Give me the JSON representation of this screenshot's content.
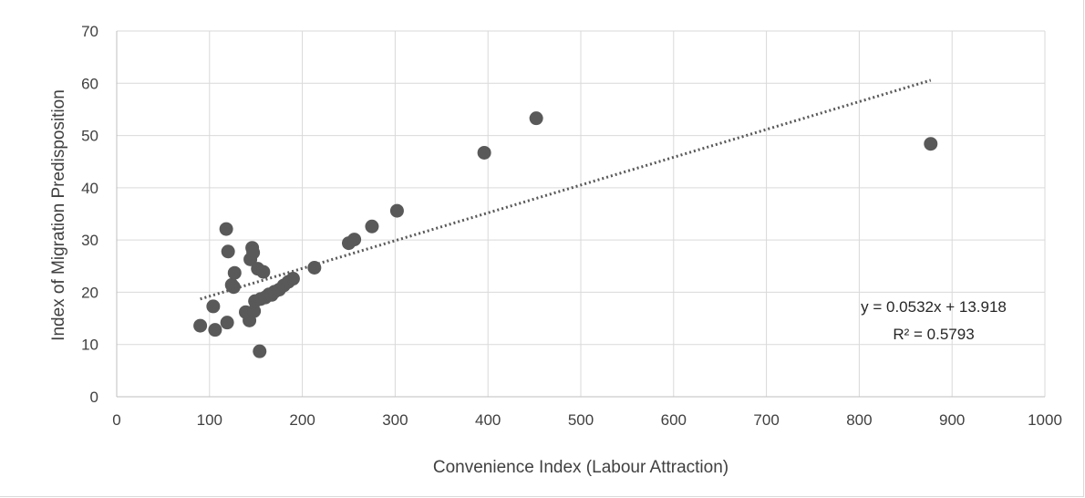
{
  "chart_data": {
    "type": "scatter",
    "title": "",
    "xlabel": "Convenience Index (Labour Attraction)",
    "ylabel": "Index of Migration Predisposition",
    "xlim": [
      0,
      1000
    ],
    "ylim": [
      0,
      70
    ],
    "x_ticks": [
      0,
      100,
      200,
      300,
      400,
      500,
      600,
      700,
      800,
      900,
      1000
    ],
    "y_ticks": [
      0,
      10,
      20,
      30,
      40,
      50,
      60,
      70
    ],
    "grid": true,
    "legend": "none",
    "marker_color": "#595959",
    "trendline": {
      "type": "linear",
      "slope": 0.0532,
      "intercept": 13.918,
      "x_range": [
        90,
        877
      ],
      "equation_label": "y = 0.0532x + 13.918",
      "r2_label": "R² = 0.5793",
      "color": "#595959"
    },
    "points": [
      {
        "x": 90,
        "y": 13.6
      },
      {
        "x": 104,
        "y": 17.3
      },
      {
        "x": 106,
        "y": 12.8
      },
      {
        "x": 118,
        "y": 32.1
      },
      {
        "x": 120,
        "y": 27.8
      },
      {
        "x": 119,
        "y": 14.2
      },
      {
        "x": 124,
        "y": 21.4
      },
      {
        "x": 126,
        "y": 21.0
      },
      {
        "x": 127,
        "y": 23.7
      },
      {
        "x": 139,
        "y": 16.2
      },
      {
        "x": 143,
        "y": 14.6
      },
      {
        "x": 144,
        "y": 26.3
      },
      {
        "x": 146,
        "y": 28.5
      },
      {
        "x": 147,
        "y": 27.6
      },
      {
        "x": 148,
        "y": 16.4
      },
      {
        "x": 149,
        "y": 18.3
      },
      {
        "x": 152,
        "y": 24.5
      },
      {
        "x": 154,
        "y": 8.7
      },
      {
        "x": 155,
        "y": 18.7
      },
      {
        "x": 158,
        "y": 23.9
      },
      {
        "x": 160,
        "y": 19.0
      },
      {
        "x": 164,
        "y": 19.6
      },
      {
        "x": 167,
        "y": 19.5
      },
      {
        "x": 170,
        "y": 20.1
      },
      {
        "x": 175,
        "y": 20.5
      },
      {
        "x": 180,
        "y": 21.3
      },
      {
        "x": 185,
        "y": 22.0
      },
      {
        "x": 190,
        "y": 22.6
      },
      {
        "x": 213,
        "y": 24.7
      },
      {
        "x": 250,
        "y": 29.4
      },
      {
        "x": 256,
        "y": 30.1
      },
      {
        "x": 275,
        "y": 32.6
      },
      {
        "x": 302,
        "y": 35.6
      },
      {
        "x": 396,
        "y": 46.7
      },
      {
        "x": 452,
        "y": 53.3
      },
      {
        "x": 877,
        "y": 48.4
      }
    ]
  }
}
